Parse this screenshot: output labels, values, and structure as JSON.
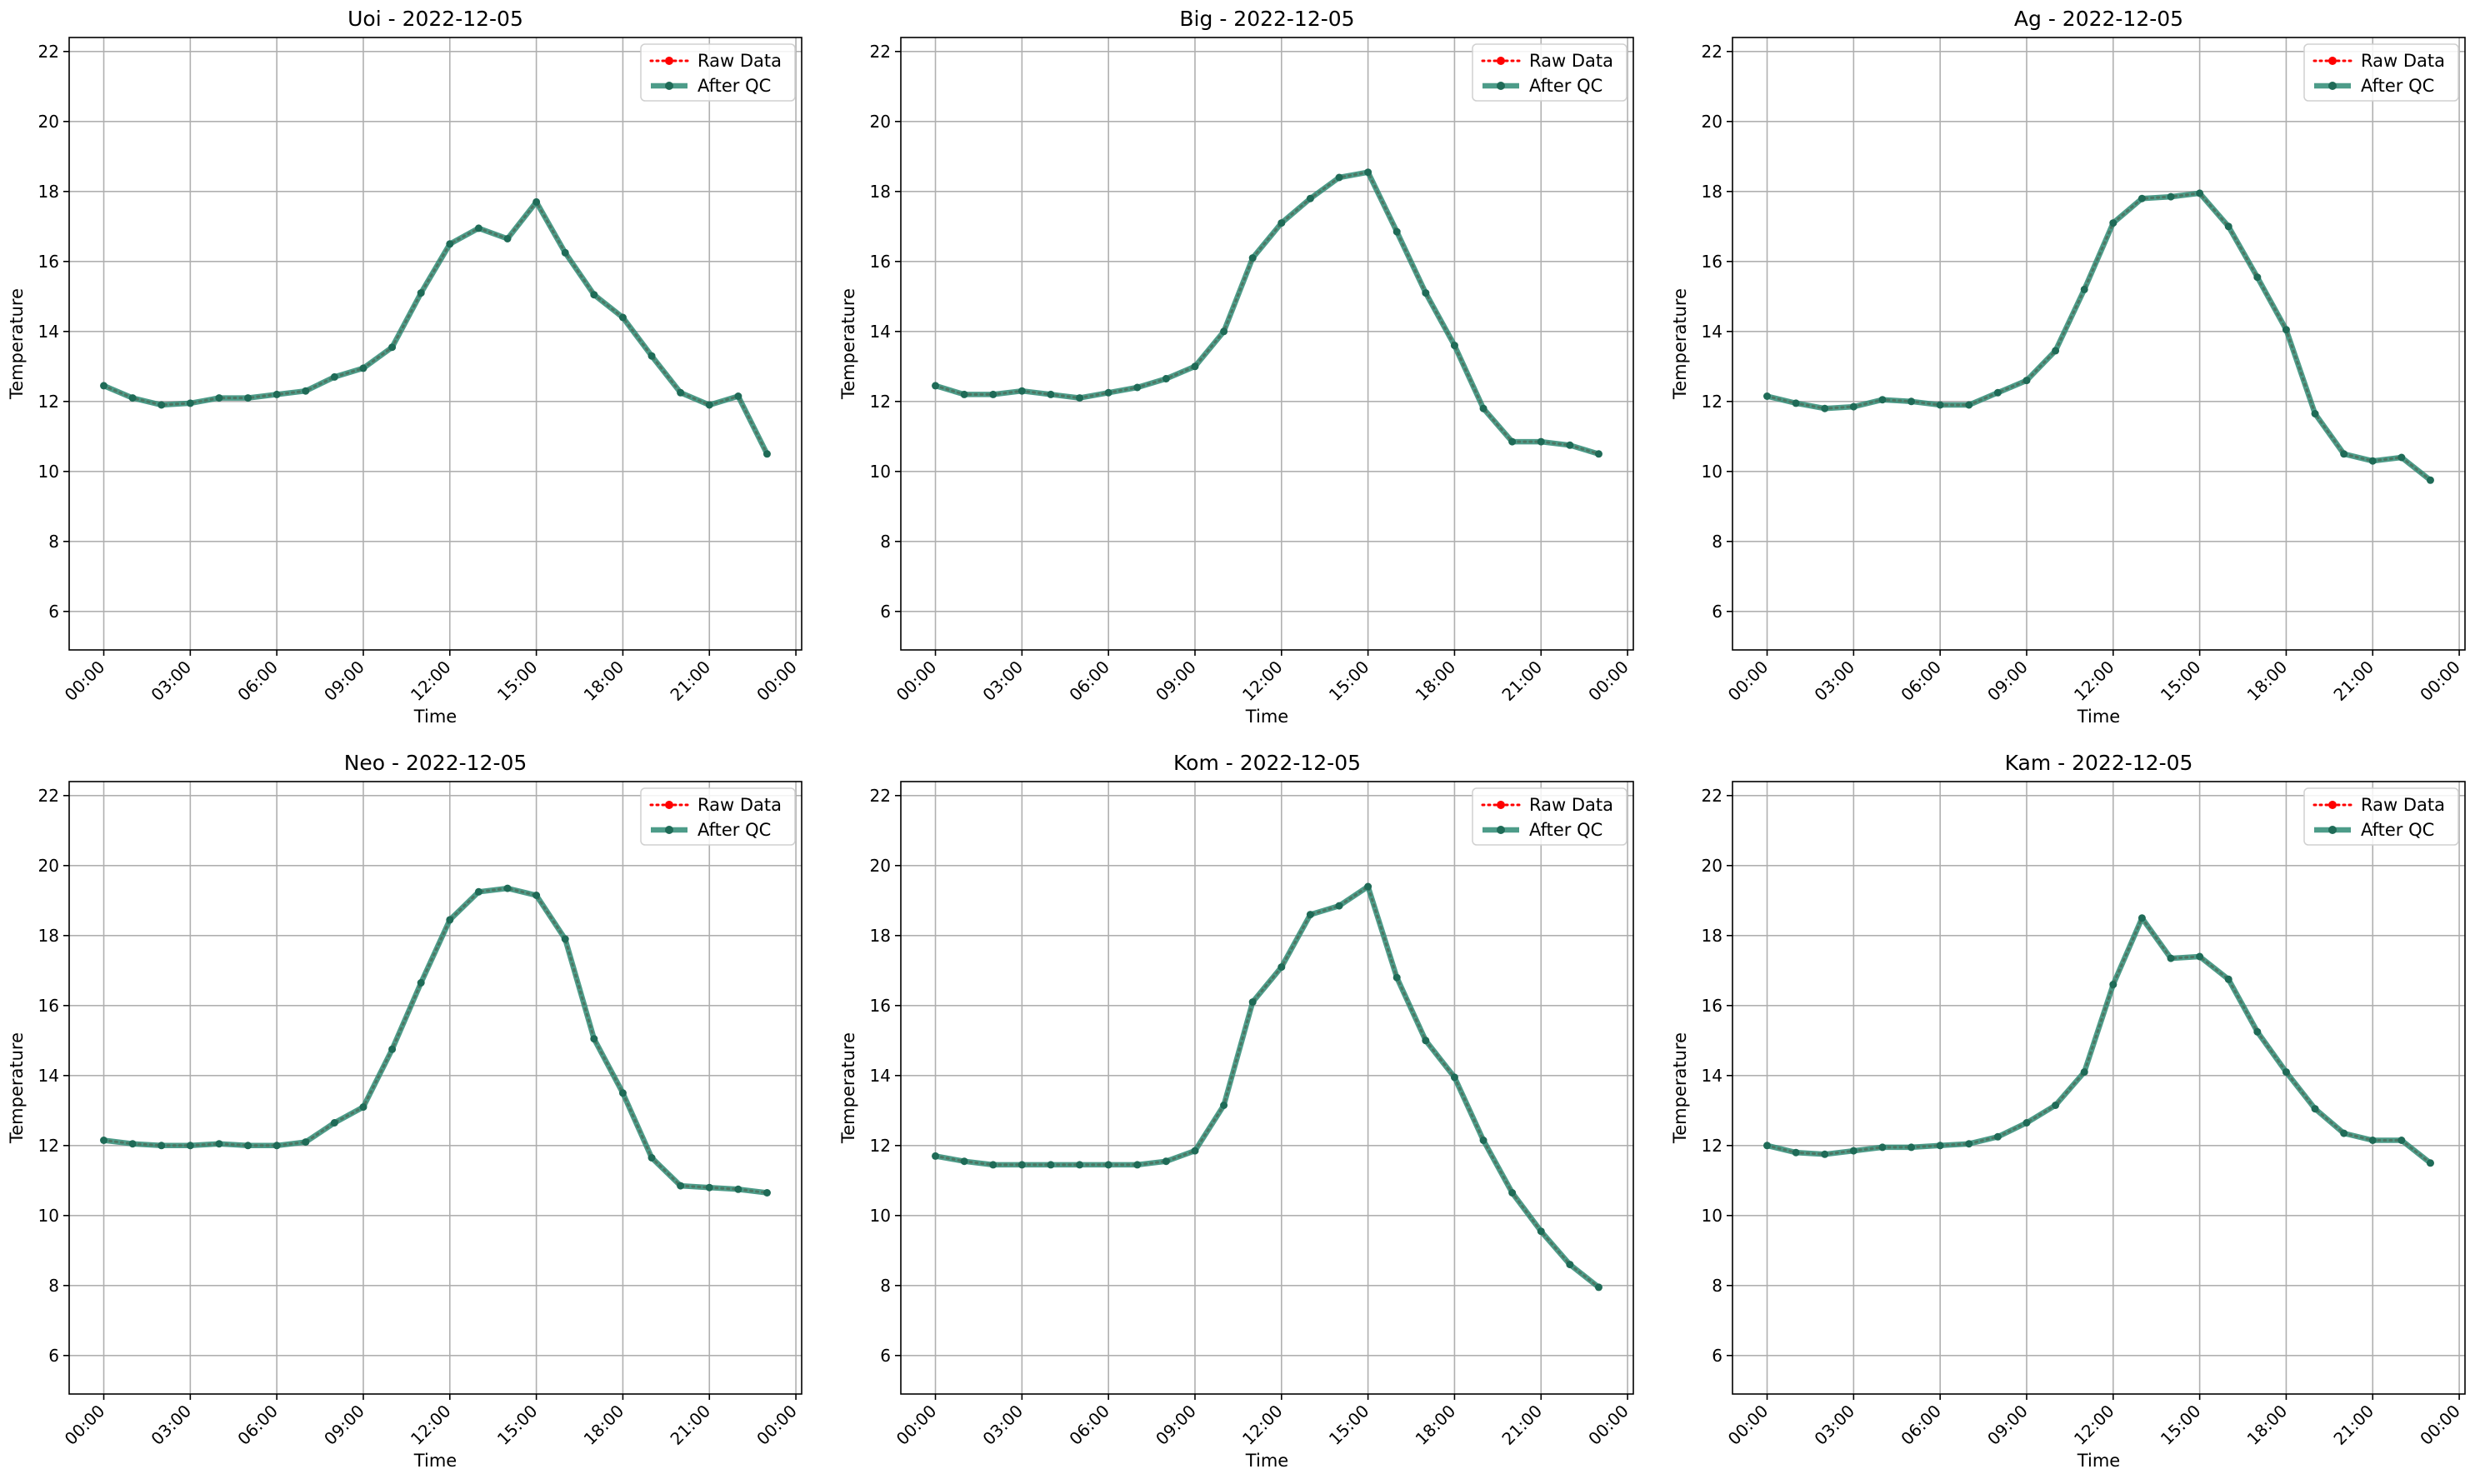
{
  "figure": {
    "legend": {
      "raw_label": "Raw Data",
      "qc_label": "After QC",
      "placement": "upper right"
    },
    "colors": {
      "raw": "#ff0000",
      "qc": "#2e8b74",
      "grid": "#b0b0b0"
    }
  },
  "chart_data": [
    {
      "type": "line",
      "title": "Uoi - 2022-12-05",
      "xlabel": "Time",
      "ylabel": "Temperature",
      "xticks": [
        "00:00",
        "03:00",
        "06:00",
        "09:00",
        "12:00",
        "15:00",
        "18:00",
        "21:00",
        "00:00"
      ],
      "yticks": [
        "6",
        "8",
        "10",
        "12",
        "14",
        "16",
        "18",
        "20",
        "22"
      ],
      "ylim": [
        4.9,
        22.4
      ],
      "xlim_hours": [
        -1.2,
        24.2
      ],
      "grid": true,
      "x_hours": [
        0,
        1,
        2,
        3,
        4,
        5,
        6,
        7,
        8,
        9,
        10,
        11,
        12,
        13,
        14,
        15,
        16,
        17,
        18,
        19,
        20,
        21,
        22,
        23
      ],
      "series": [
        {
          "name": "Raw Data",
          "values": [
            12.45,
            12.1,
            11.9,
            11.95,
            12.1,
            12.1,
            12.2,
            12.3,
            12.7,
            12.95,
            13.55,
            15.1,
            16.5,
            16.95,
            16.65,
            17.7,
            16.25,
            15.05,
            14.4,
            13.3,
            12.25,
            11.9,
            12.15,
            10.5
          ]
        },
        {
          "name": "After QC",
          "values": [
            12.45,
            12.1,
            11.9,
            11.95,
            12.1,
            12.1,
            12.2,
            12.3,
            12.7,
            12.95,
            13.55,
            15.1,
            16.5,
            16.95,
            16.65,
            17.7,
            16.25,
            15.05,
            14.4,
            13.3,
            12.25,
            11.9,
            12.15,
            10.5
          ]
        }
      ]
    },
    {
      "type": "line",
      "title": "Big - 2022-12-05",
      "xlabel": "Time",
      "ylabel": "Temperature",
      "xticks": [
        "00:00",
        "03:00",
        "06:00",
        "09:00",
        "12:00",
        "15:00",
        "18:00",
        "21:00",
        "00:00"
      ],
      "yticks": [
        "6",
        "8",
        "10",
        "12",
        "14",
        "16",
        "18",
        "20",
        "22"
      ],
      "ylim": [
        4.9,
        22.4
      ],
      "xlim_hours": [
        -1.2,
        24.2
      ],
      "grid": true,
      "x_hours": [
        0,
        1,
        2,
        3,
        4,
        5,
        6,
        7,
        8,
        9,
        10,
        11,
        12,
        13,
        14,
        15,
        16,
        17,
        18,
        19,
        20,
        21,
        22,
        23
      ],
      "series": [
        {
          "name": "Raw Data",
          "values": [
            12.45,
            12.2,
            12.2,
            12.3,
            12.2,
            12.1,
            12.25,
            12.4,
            12.65,
            13.0,
            14.0,
            16.1,
            17.1,
            17.8,
            18.4,
            18.55,
            16.85,
            15.1,
            13.6,
            11.8,
            10.85,
            10.85,
            10.75,
            10.5
          ]
        },
        {
          "name": "After QC",
          "values": [
            12.45,
            12.2,
            12.2,
            12.3,
            12.2,
            12.1,
            12.25,
            12.4,
            12.65,
            13.0,
            14.0,
            16.1,
            17.1,
            17.8,
            18.4,
            18.55,
            16.85,
            15.1,
            13.6,
            11.8,
            10.85,
            10.85,
            10.75,
            10.5
          ]
        }
      ]
    },
    {
      "type": "line",
      "title": "Ag - 2022-12-05",
      "xlabel": "Time",
      "ylabel": "Temperature",
      "xticks": [
        "00:00",
        "03:00",
        "06:00",
        "09:00",
        "12:00",
        "15:00",
        "18:00",
        "21:00",
        "00:00"
      ],
      "yticks": [
        "6",
        "8",
        "10",
        "12",
        "14",
        "16",
        "18",
        "20",
        "22"
      ],
      "ylim": [
        4.9,
        22.4
      ],
      "xlim_hours": [
        -1.2,
        24.2
      ],
      "grid": true,
      "x_hours": [
        0,
        1,
        2,
        3,
        4,
        5,
        6,
        7,
        8,
        9,
        10,
        11,
        12,
        13,
        14,
        15,
        16,
        17,
        18,
        19,
        20,
        21,
        22,
        23
      ],
      "series": [
        {
          "name": "Raw Data",
          "values": [
            12.15,
            11.95,
            11.8,
            11.85,
            12.05,
            12.0,
            11.9,
            11.9,
            12.25,
            12.6,
            13.45,
            15.2,
            17.1,
            17.8,
            17.85,
            17.95,
            17.0,
            15.55,
            14.05,
            11.65,
            10.5,
            10.3,
            10.4,
            9.75
          ]
        },
        {
          "name": "After QC",
          "values": [
            12.15,
            11.95,
            11.8,
            11.85,
            12.05,
            12.0,
            11.9,
            11.9,
            12.25,
            12.6,
            13.45,
            15.2,
            17.1,
            17.8,
            17.85,
            17.95,
            17.0,
            15.55,
            14.05,
            11.65,
            10.5,
            10.3,
            10.4,
            9.75
          ]
        }
      ]
    },
    {
      "type": "line",
      "title": "Neo - 2022-12-05",
      "xlabel": "Time",
      "ylabel": "Temperature",
      "xticks": [
        "00:00",
        "03:00",
        "06:00",
        "09:00",
        "12:00",
        "15:00",
        "18:00",
        "21:00",
        "00:00"
      ],
      "yticks": [
        "6",
        "8",
        "10",
        "12",
        "14",
        "16",
        "18",
        "20",
        "22"
      ],
      "ylim": [
        4.9,
        22.4
      ],
      "xlim_hours": [
        -1.2,
        24.2
      ],
      "grid": true,
      "x_hours": [
        0,
        1,
        2,
        3,
        4,
        5,
        6,
        7,
        8,
        9,
        10,
        11,
        12,
        13,
        14,
        15,
        16,
        17,
        18,
        19,
        20,
        21,
        22,
        23
      ],
      "series": [
        {
          "name": "Raw Data",
          "values": [
            12.15,
            12.05,
            12.0,
            12.0,
            12.05,
            12.0,
            12.0,
            12.1,
            12.65,
            13.1,
            14.75,
            16.65,
            18.45,
            19.25,
            19.35,
            19.15,
            17.9,
            15.05,
            13.5,
            11.65,
            10.85,
            10.8,
            10.75,
            10.65
          ]
        },
        {
          "name": "After QC",
          "values": [
            12.15,
            12.05,
            12.0,
            12.0,
            12.05,
            12.0,
            12.0,
            12.1,
            12.65,
            13.1,
            14.75,
            16.65,
            18.45,
            19.25,
            19.35,
            19.15,
            17.9,
            15.05,
            13.5,
            11.65,
            10.85,
            10.8,
            10.75,
            10.65
          ]
        }
      ]
    },
    {
      "type": "line",
      "title": "Kom - 2022-12-05",
      "xlabel": "Time",
      "ylabel": "Temperature",
      "xticks": [
        "00:00",
        "03:00",
        "06:00",
        "09:00",
        "12:00",
        "15:00",
        "18:00",
        "21:00",
        "00:00"
      ],
      "yticks": [
        "6",
        "8",
        "10",
        "12",
        "14",
        "16",
        "18",
        "20",
        "22"
      ],
      "ylim": [
        4.9,
        22.4
      ],
      "xlim_hours": [
        -1.2,
        24.2
      ],
      "grid": true,
      "x_hours": [
        0,
        1,
        2,
        3,
        4,
        5,
        6,
        7,
        8,
        9,
        10,
        11,
        12,
        13,
        14,
        15,
        16,
        17,
        18,
        19,
        20,
        21,
        22,
        23
      ],
      "series": [
        {
          "name": "Raw Data",
          "values": [
            11.7,
            11.55,
            11.45,
            11.45,
            11.45,
            11.45,
            11.45,
            11.45,
            11.55,
            11.85,
            13.15,
            16.1,
            17.1,
            18.6,
            18.85,
            19.4,
            16.8,
            15.0,
            13.95,
            12.15,
            10.65,
            9.55,
            8.6,
            7.95
          ]
        },
        {
          "name": "After QC",
          "values": [
            11.7,
            11.55,
            11.45,
            11.45,
            11.45,
            11.45,
            11.45,
            11.45,
            11.55,
            11.85,
            13.15,
            16.1,
            17.1,
            18.6,
            18.85,
            19.4,
            16.8,
            15.0,
            13.95,
            12.15,
            10.65,
            9.55,
            8.6,
            7.95
          ]
        }
      ]
    },
    {
      "type": "line",
      "title": "Kam - 2022-12-05",
      "xlabel": "Time",
      "ylabel": "Temperature",
      "xticks": [
        "00:00",
        "03:00",
        "06:00",
        "09:00",
        "12:00",
        "15:00",
        "18:00",
        "21:00",
        "00:00"
      ],
      "yticks": [
        "6",
        "8",
        "10",
        "12",
        "14",
        "16",
        "18",
        "20",
        "22"
      ],
      "ylim": [
        4.9,
        22.4
      ],
      "xlim_hours": [
        -1.2,
        24.2
      ],
      "grid": true,
      "x_hours": [
        0,
        1,
        2,
        3,
        4,
        5,
        6,
        7,
        8,
        9,
        10,
        11,
        12,
        13,
        14,
        15,
        16,
        17,
        18,
        19,
        20,
        21,
        22,
        23
      ],
      "series": [
        {
          "name": "Raw Data",
          "values": [
            12.0,
            11.8,
            11.75,
            11.85,
            11.95,
            11.95,
            12.0,
            12.05,
            12.25,
            12.65,
            13.15,
            14.1,
            16.6,
            18.5,
            17.35,
            17.4,
            16.75,
            15.25,
            14.1,
            13.05,
            12.35,
            12.15,
            12.15,
            11.5
          ]
        },
        {
          "name": "After QC",
          "values": [
            12.0,
            11.8,
            11.75,
            11.85,
            11.95,
            11.95,
            12.0,
            12.05,
            12.25,
            12.65,
            13.15,
            14.1,
            16.6,
            18.5,
            17.35,
            17.4,
            16.75,
            15.25,
            14.1,
            13.05,
            12.35,
            12.15,
            12.15,
            11.5
          ]
        }
      ]
    }
  ]
}
